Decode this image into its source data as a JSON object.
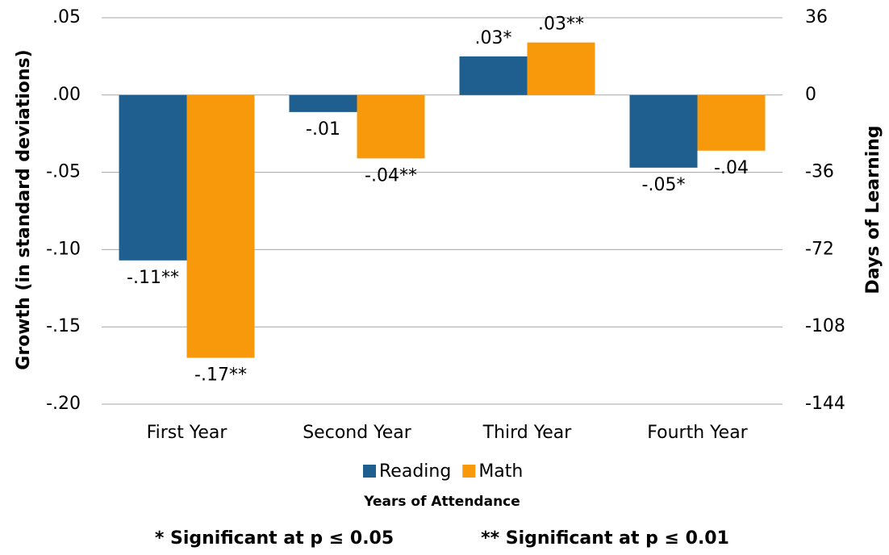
{
  "chart_data": {
    "type": "bar",
    "y_label": "Growth (in standard deviations)",
    "y2_label": "Days of Learning",
    "x_label": "Years of Attendance",
    "footnotes": [
      "* Significant at p ≤ 0.05",
      "** Significant at p ≤ 0.01"
    ],
    "categories": [
      "First Year",
      "Second Year",
      "Third Year",
      "Fourth Year"
    ],
    "series": [
      {
        "name": "Reading",
        "color": "#1f5f8f",
        "values": [
          -0.107,
          -0.011,
          0.025,
          -0.047
        ],
        "value_labels": [
          "-.11**",
          "-.01",
          ".03*",
          "-.05*"
        ]
      },
      {
        "name": "Math",
        "color": "#f7990a",
        "values": [
          -0.17,
          -0.041,
          0.034,
          -0.036
        ],
        "value_labels": [
          "-.17**",
          "-.04**",
          ".03**",
          "-.04"
        ]
      }
    ],
    "ylim": [
      -0.2,
      0.05
    ],
    "yticks": [
      {
        "value": 0.05,
        "label": ".05"
      },
      {
        "value": 0,
        "label": ".00"
      },
      {
        "value": -0.05,
        "label": "-.05"
      },
      {
        "value": -0.1,
        "label": "-.10"
      },
      {
        "value": -0.15,
        "label": "-.15"
      },
      {
        "value": -0.2,
        "label": "-.20"
      }
    ],
    "y2lim": [
      -144,
      36
    ],
    "y2ticks": [
      36,
      0,
      -36,
      -72,
      -108,
      -144
    ],
    "grid": true
  }
}
